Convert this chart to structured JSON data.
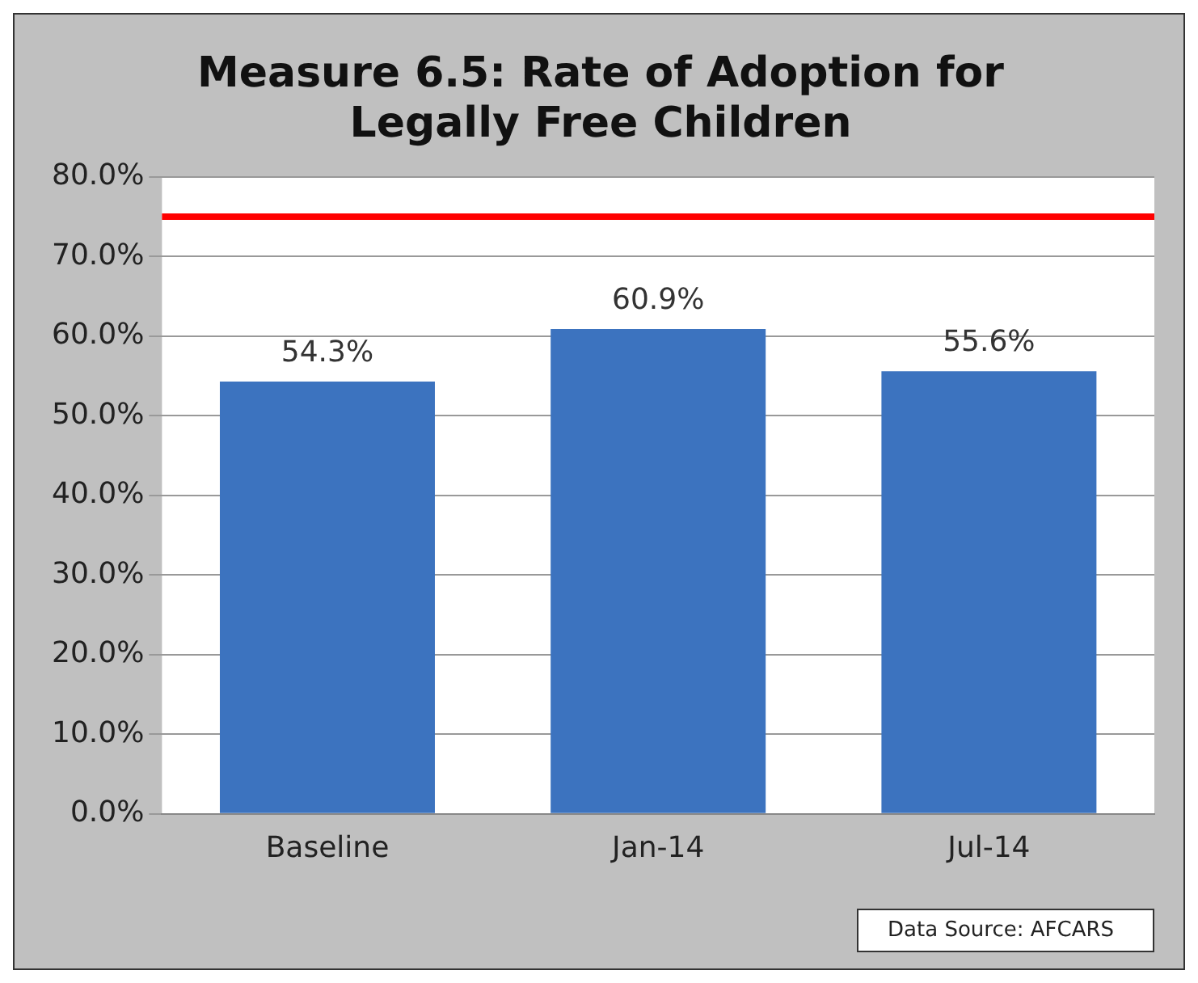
{
  "chart_data": {
    "type": "bar",
    "title": "Measure 6.5: Rate of Adoption for Legally Free Children",
    "categories": [
      "Baseline",
      "Jan-14",
      "Jul-14"
    ],
    "values": [
      54.3,
      60.9,
      55.6
    ],
    "color": "#3c73bf",
    "value_labels": [
      "54.3%",
      "60.9%",
      "55.6%"
    ],
    "ylim": [
      0,
      80
    ],
    "yticks": [
      {
        "value": 0,
        "label": "0.0%"
      },
      {
        "value": 10,
        "label": "10.0%"
      },
      {
        "value": 20,
        "label": "20.0%"
      },
      {
        "value": 30,
        "label": "30.0%"
      },
      {
        "value": 40,
        "label": "40.0%"
      },
      {
        "value": 50,
        "label": "50.0%"
      },
      {
        "value": 60,
        "label": "60.0%"
      },
      {
        "value": 70,
        "label": "70.0%"
      },
      {
        "value": 80,
        "label": "80.0%"
      }
    ],
    "ref_lines": [
      {
        "axis": "y",
        "value": 75,
        "color": "#ff0000"
      }
    ],
    "grid": "y",
    "legend": false,
    "annotations": [
      "Data Source: AFCARS"
    ]
  }
}
